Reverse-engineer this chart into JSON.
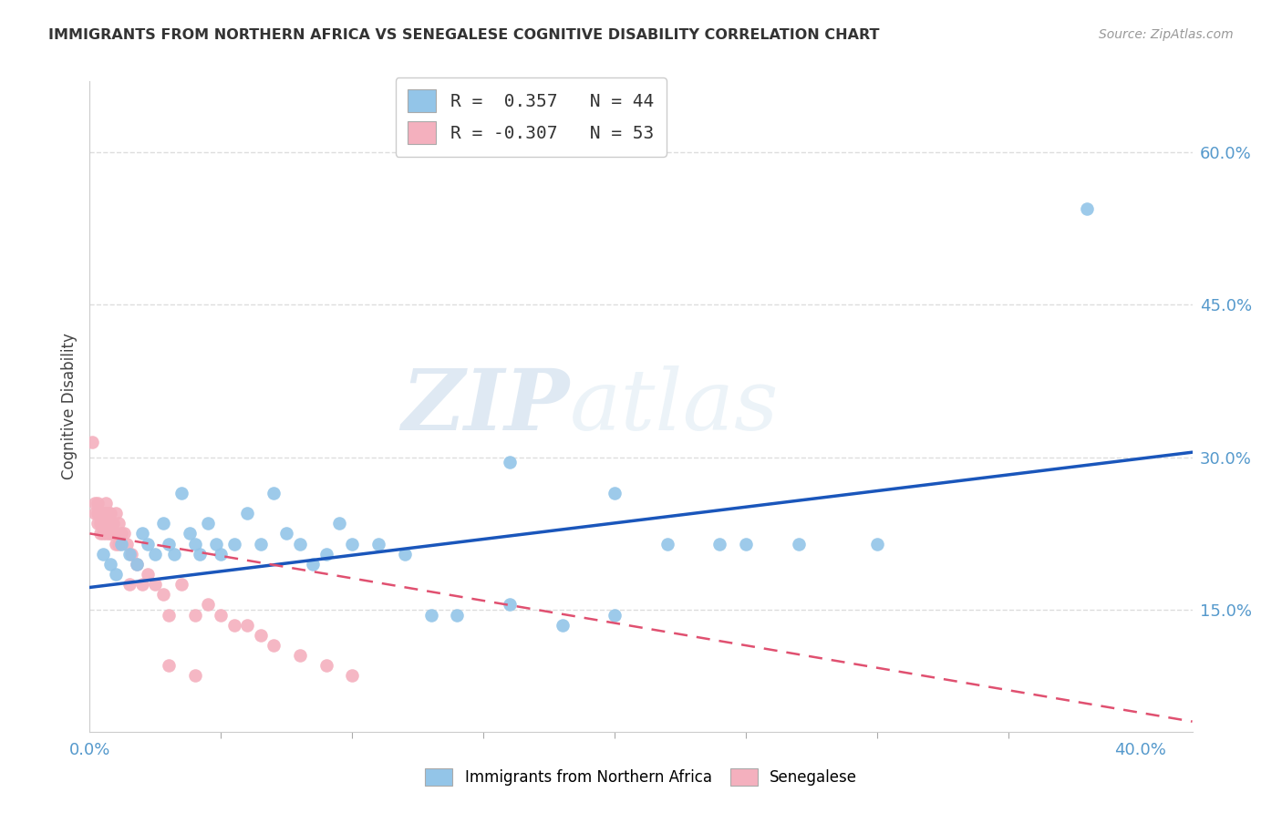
{
  "title": "IMMIGRANTS FROM NORTHERN AFRICA VS SENEGALESE COGNITIVE DISABILITY CORRELATION CHART",
  "source": "Source: ZipAtlas.com",
  "ylabel": "Cognitive Disability",
  "xlim": [
    0.0,
    0.42
  ],
  "ylim": [
    0.03,
    0.67
  ],
  "ytick_values": [
    0.15,
    0.3,
    0.45,
    0.6
  ],
  "ytick_labels": [
    "15.0%",
    "30.0%",
    "45.0%",
    "60.0%"
  ],
  "xtick_values": [
    0.0,
    0.05,
    0.1,
    0.15,
    0.2,
    0.25,
    0.3,
    0.35,
    0.4
  ],
  "grid_color": "#dddddd",
  "background_color": "#ffffff",
  "blue_color": "#93c5e8",
  "blue_line_color": "#1a56bb",
  "pink_color": "#f4b0be",
  "pink_line_color": "#e05070",
  "legend_R1": " 0.357",
  "legend_N1": "44",
  "legend_R2": "-0.307",
  "legend_N2": "53",
  "legend_label1": "Immigrants from Northern Africa",
  "legend_label2": "Senegalese",
  "watermark_zip": "ZIP",
  "watermark_atlas": "atlas",
  "blue_line_x": [
    0.0,
    0.42
  ],
  "blue_line_y": [
    0.172,
    0.305
  ],
  "pink_line_x": [
    0.0,
    0.42
  ],
  "pink_line_y": [
    0.225,
    0.04
  ],
  "blue_x": [
    0.005,
    0.008,
    0.01,
    0.012,
    0.015,
    0.018,
    0.02,
    0.022,
    0.025,
    0.028,
    0.03,
    0.032,
    0.035,
    0.038,
    0.04,
    0.042,
    0.045,
    0.048,
    0.05,
    0.055,
    0.06,
    0.065,
    0.07,
    0.075,
    0.08,
    0.085,
    0.09,
    0.095,
    0.1,
    0.11,
    0.12,
    0.13,
    0.14,
    0.16,
    0.18,
    0.2,
    0.22,
    0.25,
    0.27,
    0.3,
    0.38,
    0.16,
    0.2,
    0.24
  ],
  "blue_y": [
    0.205,
    0.195,
    0.185,
    0.215,
    0.205,
    0.195,
    0.225,
    0.215,
    0.205,
    0.235,
    0.215,
    0.205,
    0.265,
    0.225,
    0.215,
    0.205,
    0.235,
    0.215,
    0.205,
    0.215,
    0.245,
    0.215,
    0.265,
    0.225,
    0.215,
    0.195,
    0.205,
    0.235,
    0.215,
    0.215,
    0.205,
    0.145,
    0.145,
    0.155,
    0.135,
    0.145,
    0.215,
    0.215,
    0.215,
    0.215,
    0.545,
    0.295,
    0.265,
    0.215
  ],
  "pink_x": [
    0.001,
    0.002,
    0.002,
    0.003,
    0.003,
    0.003,
    0.004,
    0.004,
    0.004,
    0.005,
    0.005,
    0.005,
    0.006,
    0.006,
    0.006,
    0.006,
    0.007,
    0.007,
    0.007,
    0.008,
    0.008,
    0.008,
    0.009,
    0.009,
    0.01,
    0.01,
    0.01,
    0.011,
    0.011,
    0.012,
    0.013,
    0.014,
    0.015,
    0.016,
    0.018,
    0.02,
    0.022,
    0.025,
    0.028,
    0.03,
    0.035,
    0.04,
    0.045,
    0.05,
    0.055,
    0.06,
    0.065,
    0.07,
    0.08,
    0.09,
    0.1,
    0.03,
    0.04
  ],
  "pink_y": [
    0.315,
    0.245,
    0.255,
    0.245,
    0.235,
    0.255,
    0.245,
    0.235,
    0.225,
    0.245,
    0.235,
    0.225,
    0.255,
    0.245,
    0.235,
    0.225,
    0.245,
    0.235,
    0.225,
    0.245,
    0.235,
    0.225,
    0.235,
    0.225,
    0.245,
    0.225,
    0.215,
    0.235,
    0.215,
    0.225,
    0.225,
    0.215,
    0.175,
    0.205,
    0.195,
    0.175,
    0.185,
    0.175,
    0.165,
    0.145,
    0.175,
    0.145,
    0.155,
    0.145,
    0.135,
    0.135,
    0.125,
    0.115,
    0.105,
    0.095,
    0.085,
    0.095,
    0.085
  ]
}
